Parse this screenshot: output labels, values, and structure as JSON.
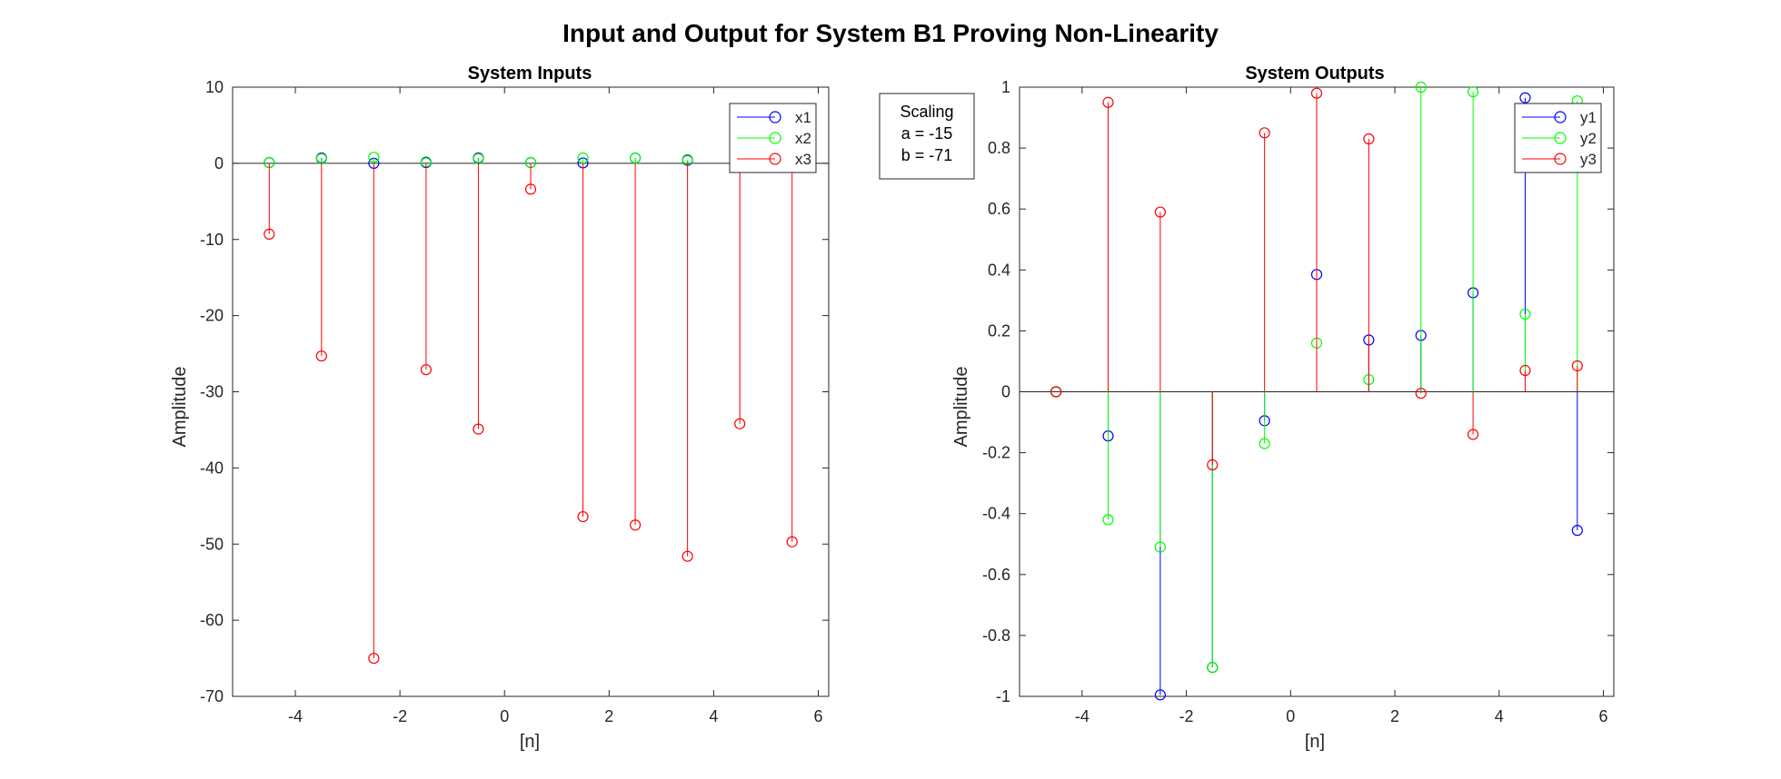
{
  "figure": {
    "title": "Input and Output for System B1 Proving Non-Linearity"
  },
  "annotation": {
    "lines": [
      "Scaling",
      "a = -15",
      "b = -71"
    ]
  },
  "colors": {
    "series1": "#0000ff",
    "series2": "#00ff00",
    "series3": "#ff0000",
    "axis": "#262626"
  },
  "chart_data": [
    {
      "type": "stem",
      "title": "System Inputs",
      "xlabel": "[n]",
      "ylabel": "Amplitude",
      "xlim": [
        -5.2,
        6.2
      ],
      "ylim": [
        -70,
        10
      ],
      "xticks": [
        -4,
        -2,
        0,
        2,
        4,
        6
      ],
      "yticks": [
        10,
        0,
        -10,
        -20,
        -30,
        -40,
        -50,
        -60,
        -70
      ],
      "legend_position": "top-right",
      "grid": false,
      "x": [
        -4.5,
        -3.5,
        -2.5,
        -1.5,
        -0.5,
        0.5,
        1.5,
        2.5,
        3.5,
        4.5,
        5.5
      ],
      "series": [
        {
          "name": "x1",
          "color_key": "series1",
          "values": [
            0.1,
            0.7,
            0,
            0.1,
            0.7,
            0.1,
            0.05,
            0.7,
            0.4,
            0,
            0
          ]
        },
        {
          "name": "x2",
          "color_key": "series2",
          "values": [
            0.1,
            0.6,
            0.8,
            0.2,
            0.6,
            0.1,
            0.7,
            0.7,
            0.5,
            0,
            0
          ]
        },
        {
          "name": "x3",
          "color_key": "series3",
          "values": [
            -9.3,
            -25.3,
            -65,
            -27.1,
            -34.9,
            -3.4,
            -46.4,
            -47.5,
            -51.6,
            -34.2,
            -49.7
          ]
        }
      ]
    },
    {
      "type": "stem",
      "title": "System Outputs",
      "xlabel": "[n]",
      "ylabel": "Amplitude",
      "xlim": [
        -5.2,
        6.2
      ],
      "ylim": [
        -1,
        1
      ],
      "xticks": [
        -4,
        -2,
        0,
        2,
        4,
        6
      ],
      "yticks": [
        1,
        0.8,
        0.6,
        0.4,
        0.2,
        0,
        -0.2,
        -0.4,
        -0.6,
        -0.8,
        -1
      ],
      "ytick_labels": [
        "1",
        "0.8",
        "0.6",
        "0.4",
        "0.2",
        "0",
        "-0.2",
        "-0.4",
        "-0.6",
        "-0.8",
        "-1"
      ],
      "legend_position": "top-right",
      "grid": false,
      "x": [
        -4.5,
        -3.5,
        -2.5,
        -1.5,
        -0.5,
        0.5,
        1.5,
        2.5,
        3.5,
        4.5,
        5.5
      ],
      "series": [
        {
          "name": "y1",
          "color_key": "series1",
          "values": [
            0,
            -0.145,
            -0.995,
            -0.905,
            -0.095,
            0.385,
            0.17,
            0.185,
            0.325,
            0.965,
            -0.455
          ]
        },
        {
          "name": "y2",
          "color_key": "series2",
          "values": [
            0,
            -0.42,
            -0.51,
            -0.905,
            -0.17,
            0.16,
            0.04,
            1.0,
            0.985,
            0.255,
            0.955
          ]
        },
        {
          "name": "y3",
          "color_key": "series3",
          "values": [
            0,
            0.95,
            0.59,
            -0.24,
            0.85,
            0.98,
            0.83,
            -0.005,
            -0.14,
            0.07,
            0.085
          ]
        }
      ]
    }
  ]
}
